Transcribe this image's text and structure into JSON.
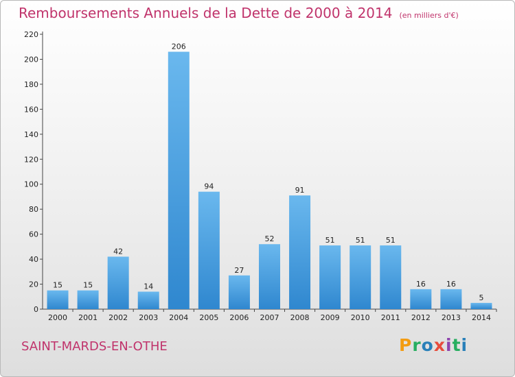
{
  "title": "Remboursements Annuels de la Dette de 2000 à 2014",
  "subtitle": "(en milliers d'€)",
  "commune": "SAINT-MARDS-EN-OTHE",
  "logo": {
    "letters": [
      "P",
      "r",
      "o",
      "x",
      "i",
      "t",
      "i"
    ],
    "colors": [
      "#f39c12",
      "#27ae60",
      "#2980b9",
      "#e74c3c",
      "#8e44ad",
      "#27ae60",
      "#2980b9"
    ]
  },
  "colors": {
    "bar_light": "#6ab8ee",
    "bar_dark": "#2f87cf",
    "title": "#c0336b"
  },
  "chart_data": {
    "type": "bar",
    "title": "Remboursements Annuels de la Dette de 2000 à 2014",
    "xlabel": "",
    "ylabel": "",
    "categories": [
      "2000",
      "2001",
      "2002",
      "2003",
      "2004",
      "2005",
      "2006",
      "2007",
      "2008",
      "2009",
      "2010",
      "2011",
      "2012",
      "2013",
      "2014"
    ],
    "values": [
      15,
      15,
      42,
      14,
      206,
      94,
      27,
      52,
      91,
      51,
      51,
      51,
      16,
      16,
      5
    ],
    "ylim": [
      0,
      220
    ],
    "yticks": [
      0,
      20,
      40,
      60,
      80,
      100,
      120,
      140,
      160,
      180,
      200,
      220
    ],
    "grid": false,
    "data_labels": true
  }
}
